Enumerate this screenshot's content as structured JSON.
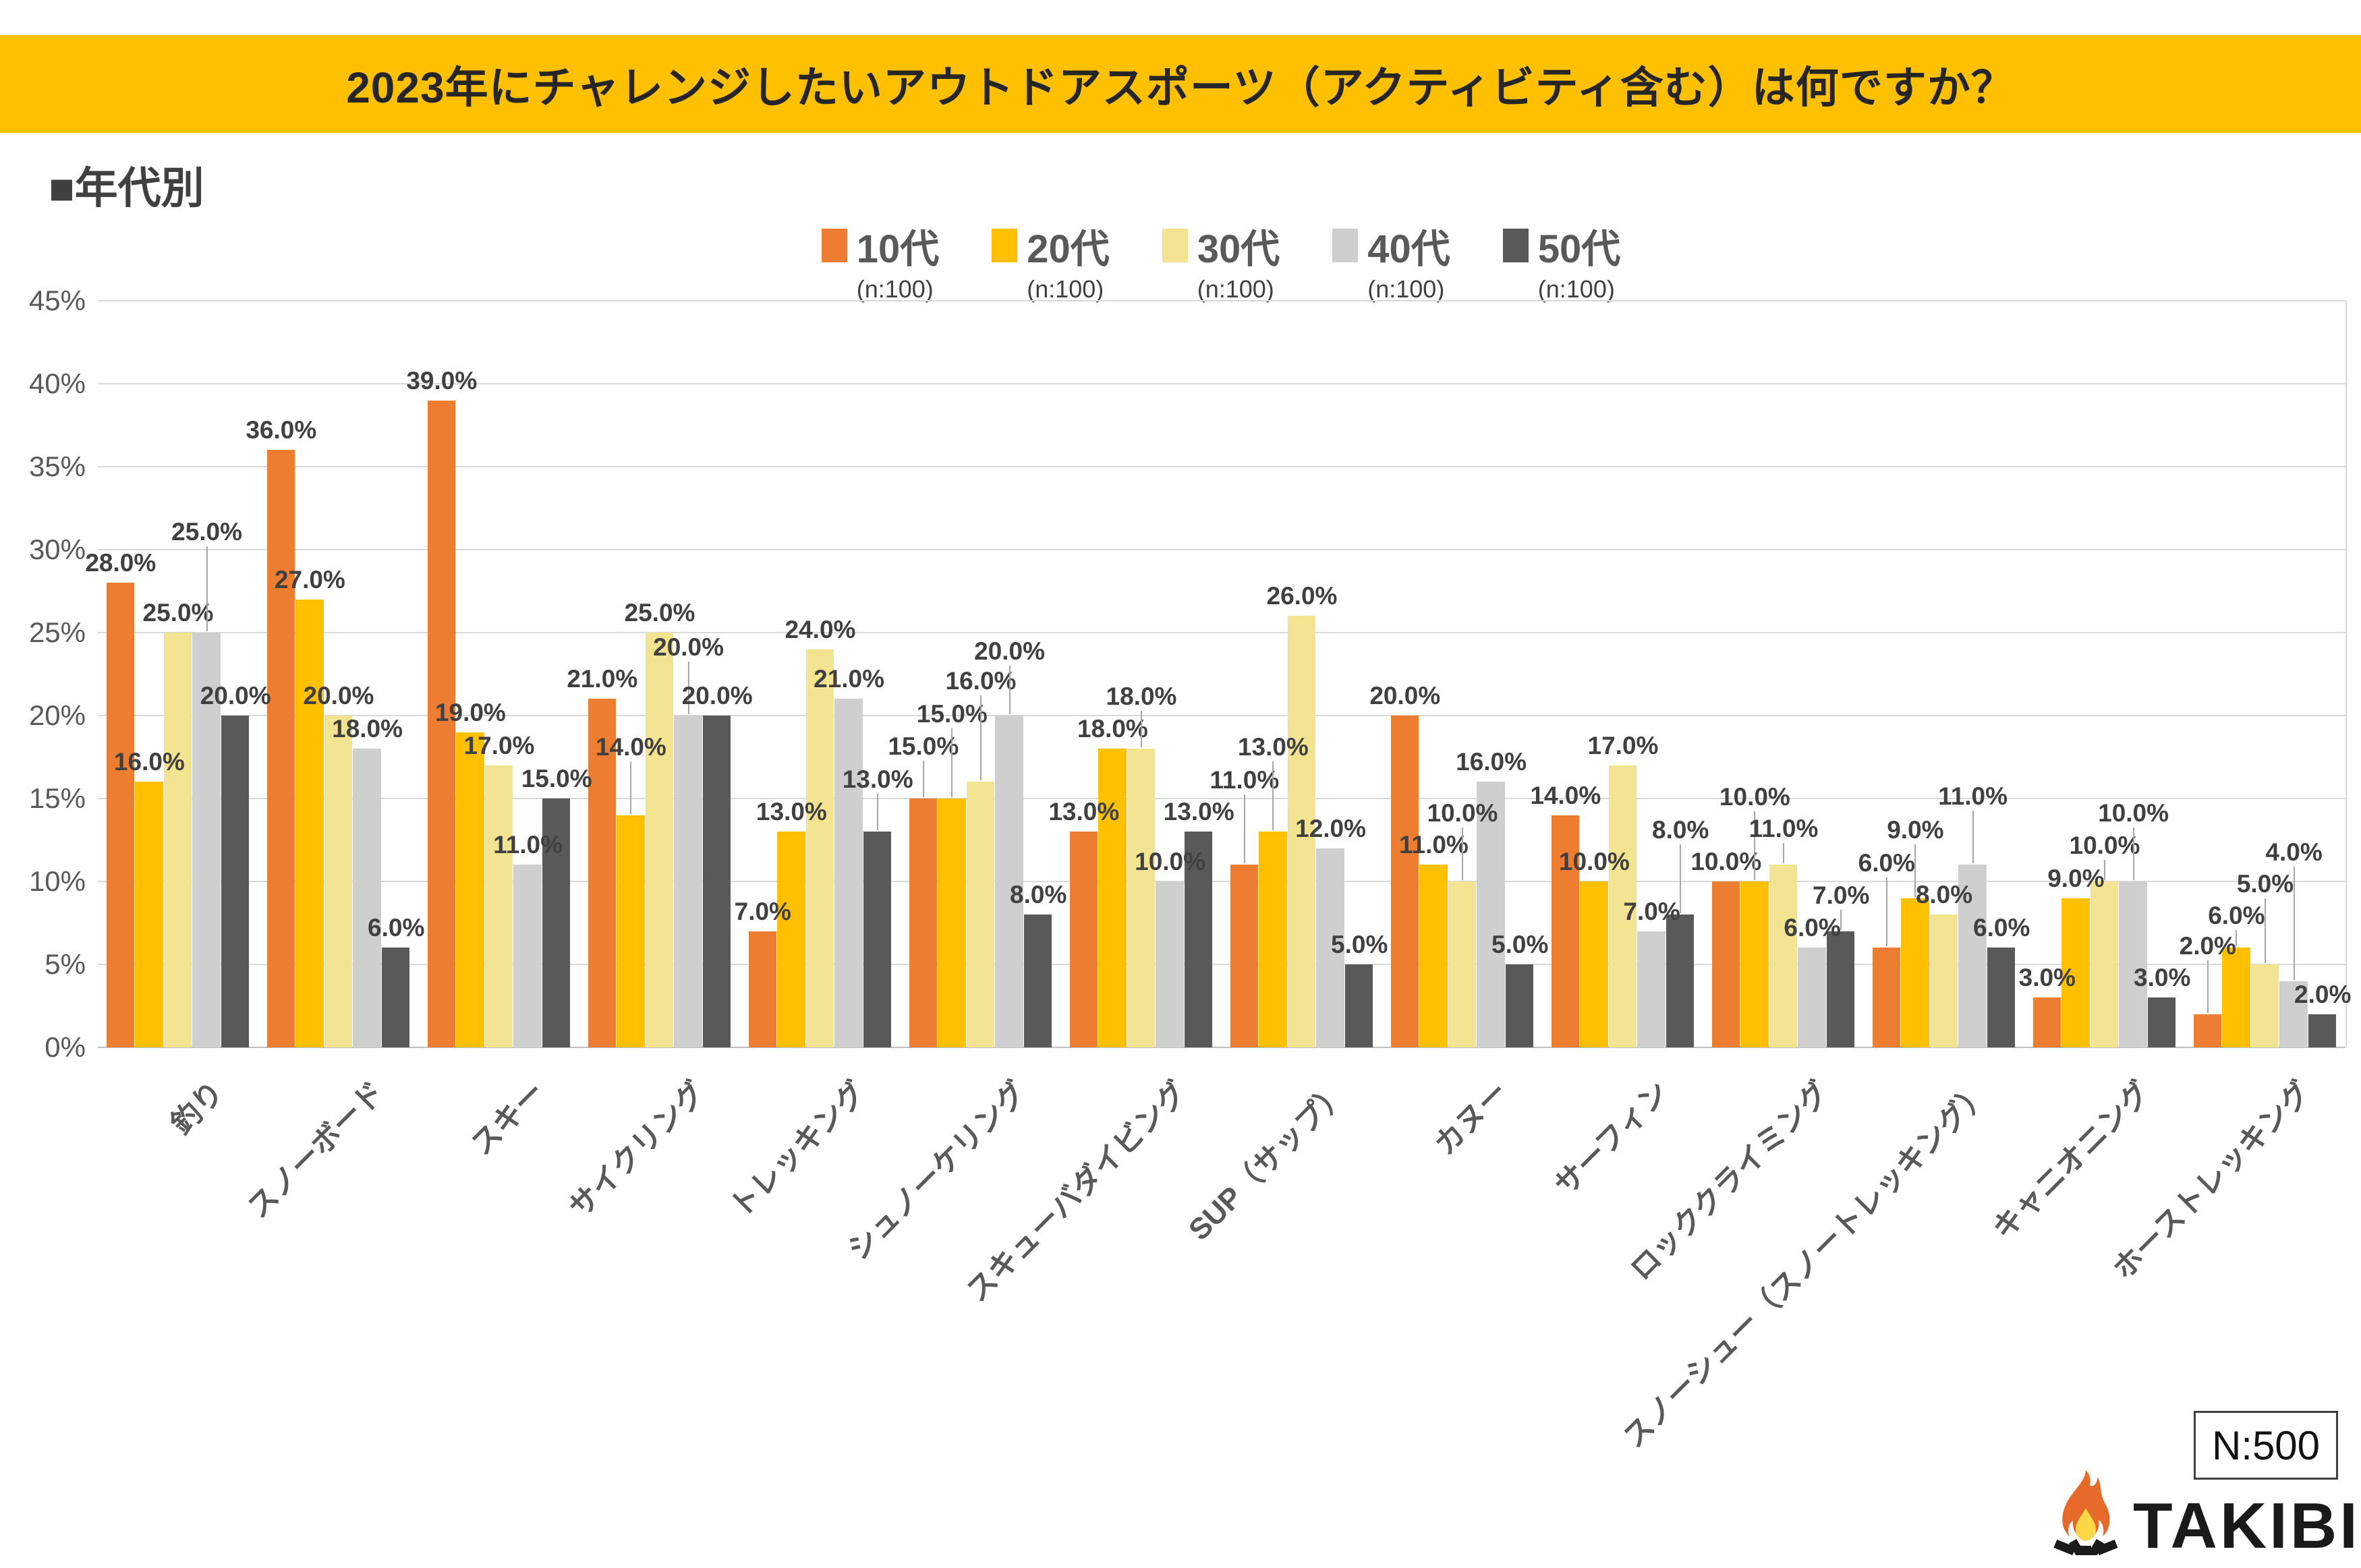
{
  "title": "2023年にチャレンジしたいアウトドアスポーツ（アクティビティ含む）は何ですか？",
  "section_heading": "■年代別",
  "legend": {
    "items": [
      {
        "label": "10代",
        "n": "(n:100)",
        "color": "#ED7D31"
      },
      {
        "label": "20代",
        "n": "(n:100)",
        "color": "#FFC000"
      },
      {
        "label": "30代",
        "n": "(n:100)",
        "color": "#F3E492"
      },
      {
        "label": "40代",
        "n": "(n:100)",
        "color": "#CFCFCF"
      },
      {
        "label": "50代",
        "n": "(n:100)",
        "color": "#595959"
      }
    ]
  },
  "chart_data": {
    "type": "bar",
    "title": "2023年にチャレンジしたいアウトドアスポーツ（アクティビティ含む）は何ですか？",
    "subtitle": "年代別",
    "categories": [
      "釣り",
      "スノーボード",
      "スキー",
      "サイクリング",
      "トレッキング",
      "シュノーケリング",
      "スキューバダイビング",
      "SUP（サップ）",
      "カヌー",
      "サーフィン",
      "ロッククライミング",
      "スノーシュー（スノートレッキング）",
      "キャニオニング",
      "ホーストレッキング"
    ],
    "series": [
      {
        "name": "10代",
        "color": "#ED7D31",
        "values": [
          28.0,
          36.0,
          39.0,
          21.0,
          7.0,
          15.0,
          13.0,
          11.0,
          20.0,
          14.0,
          10.0,
          6.0,
          3.0,
          2.0
        ]
      },
      {
        "name": "20代",
        "color": "#FFC000",
        "values": [
          16.0,
          27.0,
          19.0,
          14.0,
          13.0,
          15.0,
          18.0,
          13.0,
          11.0,
          10.0,
          10.0,
          9.0,
          9.0,
          6.0
        ]
      },
      {
        "name": "30代",
        "color": "#F3E492",
        "values": [
          25.0,
          20.0,
          17.0,
          25.0,
          24.0,
          16.0,
          18.0,
          26.0,
          10.0,
          17.0,
          11.0,
          8.0,
          10.0,
          5.0
        ]
      },
      {
        "name": "40代",
        "color": "#CFCFCF",
        "values": [
          25.0,
          18.0,
          11.0,
          20.0,
          21.0,
          20.0,
          10.0,
          12.0,
          16.0,
          7.0,
          6.0,
          11.0,
          10.0,
          4.0
        ]
      },
      {
        "name": "50代",
        "color": "#595959",
        "values": [
          20.0,
          6.0,
          15.0,
          20.0,
          13.0,
          8.0,
          13.0,
          5.0,
          5.0,
          8.0,
          7.0,
          6.0,
          3.0,
          2.0
        ]
      }
    ],
    "ylabel": "",
    "xlabel": "",
    "ylim": [
      0,
      45
    ],
    "ytick_step": 5,
    "ytick_labels": [
      "0%",
      "5%",
      "10%",
      "15%",
      "20%",
      "25%",
      "30%",
      "35%",
      "40%",
      "45%"
    ],
    "grid": true,
    "legend_position": "top",
    "value_label_format": "{value:.1f}%"
  },
  "footer": {
    "n_total": "N:500",
    "brand": "TAKIBI",
    "icon": "campfire-icon"
  }
}
